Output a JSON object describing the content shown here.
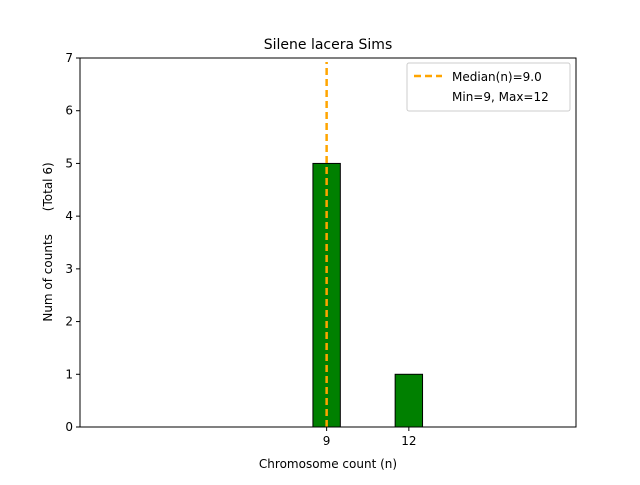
{
  "chart_data": {
    "type": "bar",
    "title": "Silene lacera Sims",
    "xlabel": "Chromosome count (n)",
    "ylabel": "Num of counts      (Total 6)",
    "categories": [
      9,
      12
    ],
    "values": [
      5,
      1
    ],
    "xticks": [
      "9",
      "12"
    ],
    "yticks": [
      "0",
      "1",
      "2",
      "3",
      "4",
      "5",
      "6",
      "7"
    ],
    "ylim": [
      0,
      7
    ],
    "xlim": [
      0,
      18.1
    ],
    "bar_width": 1,
    "baseline_extent": [
      0,
      15.6
    ],
    "median": 9.0,
    "grid": false,
    "legend": {
      "position": "top-right",
      "entries": [
        "Median(n)=9.0",
        "Min=9, Max=12"
      ]
    },
    "colors": {
      "bar": "#008000",
      "bar_edge": "#000000",
      "median_line": "#ffa500"
    }
  }
}
